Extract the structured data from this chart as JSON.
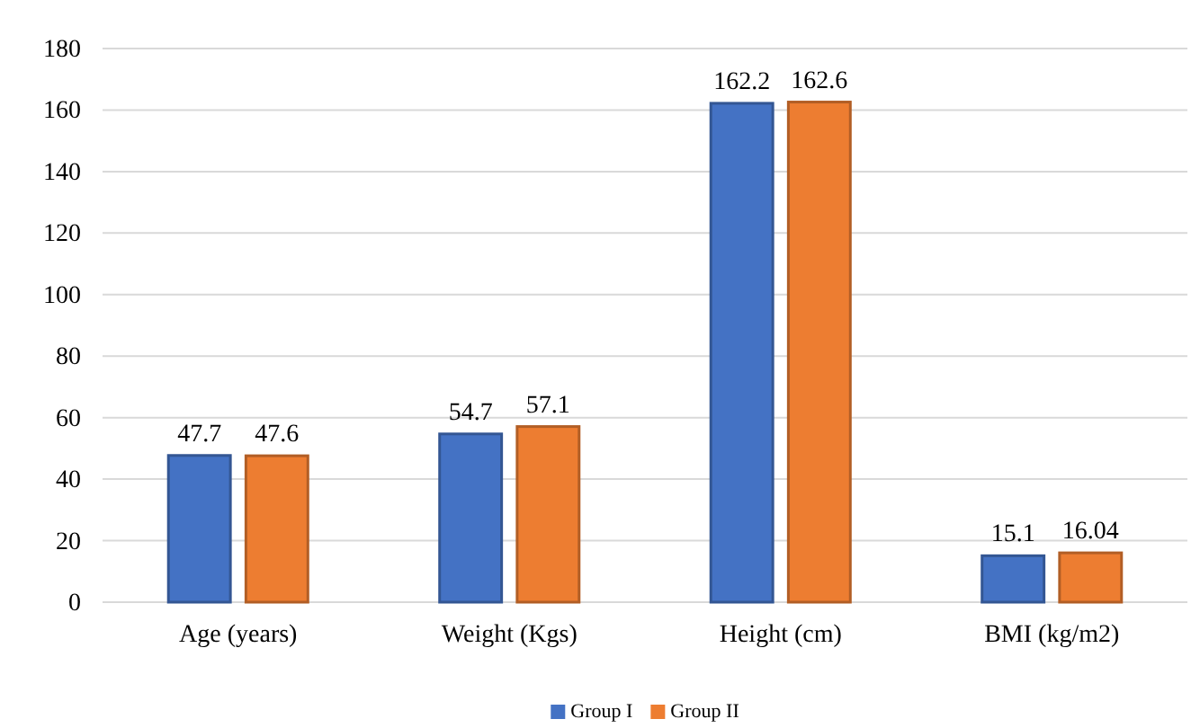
{
  "chart_data": {
    "type": "bar",
    "categories": [
      "Age (years)",
      "Weight (Kgs)",
      "Height (cm)",
      "BMI (kg/m2)"
    ],
    "series": [
      {
        "name": "Group I",
        "color": "#4472c4",
        "values": [
          47.7,
          54.7,
          162.2,
          15.1
        ]
      },
      {
        "name": "Group II",
        "color": "#ed7d31",
        "values": [
          47.6,
          57.1,
          162.6,
          16.04
        ]
      }
    ],
    "ylim": [
      0,
      180
    ],
    "yticks": [
      0,
      20,
      40,
      60,
      80,
      100,
      120,
      140,
      160,
      180
    ],
    "grid": "y",
    "legend": "bottom",
    "data_labels": true
  }
}
